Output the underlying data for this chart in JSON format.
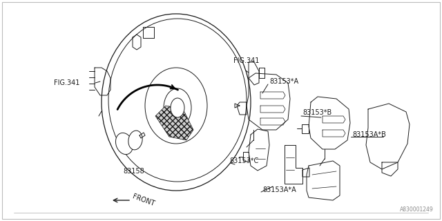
{
  "background_color": "#ffffff",
  "line_color": "#1a1a1a",
  "fig_width": 6.4,
  "fig_height": 3.2,
  "dpi": 100,
  "watermark": "A830001249",
  "border_color": "#cccccc",
  "labels": {
    "FIG341_left": "FIG.341",
    "FIG341_right": "FIG.341",
    "p83153A": "83153*A",
    "p83153B": "83153*B",
    "p83153AB": "83153A*B",
    "p83153C": "83153*C",
    "p83153AA": "83153A*A",
    "p83158": "83158",
    "front": "FRONT"
  }
}
